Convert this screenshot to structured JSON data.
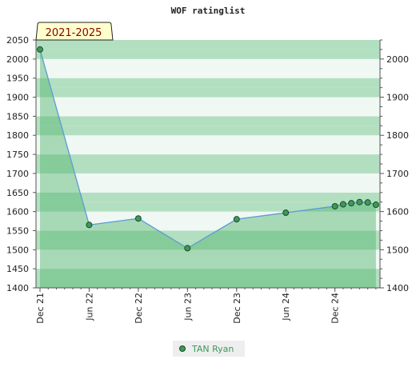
{
  "chart_data": {
    "type": "area",
    "title": "WOF ratinglist",
    "period_label": "2021-2025",
    "xlabel": "",
    "ylabel": "",
    "ylim": [
      1400,
      2050
    ],
    "left_ticks": [
      1400,
      1450,
      1500,
      1550,
      1600,
      1650,
      1700,
      1750,
      1800,
      1850,
      1900,
      1950,
      2000,
      2050
    ],
    "right_ticks": [
      1400,
      1500,
      1600,
      1700,
      1800,
      1900,
      2000
    ],
    "x_ticks": [
      "Dec 21",
      "Jun 22",
      "Dec 22",
      "Jun 23",
      "Dec 23",
      "Jun 24",
      "Dec 24"
    ],
    "x_tick_pos": [
      0,
      6,
      12,
      18,
      24,
      30,
      36
    ],
    "xlim": [
      0,
      41.5
    ],
    "grid": true,
    "legend_position": "bottom-center",
    "series": [
      {
        "name": "TAN Ryan",
        "x": [
          0,
          6,
          12,
          18,
          24,
          30,
          36,
          37,
          38,
          39,
          40,
          41
        ],
        "values": [
          2025,
          1565,
          1582,
          1504,
          1580,
          1597,
          1614,
          1619,
          1622,
          1625,
          1624,
          1618
        ]
      }
    ],
    "colors": {
      "band_dark": "#b2dfc0",
      "band_light": "#f0f8f3",
      "area_fill": "#4fb36c",
      "line": "#5b9bd5",
      "marker_fill": "#3c9a58",
      "marker_stroke": "#1f4a2a",
      "label_bg": "#ffffcc"
    }
  }
}
